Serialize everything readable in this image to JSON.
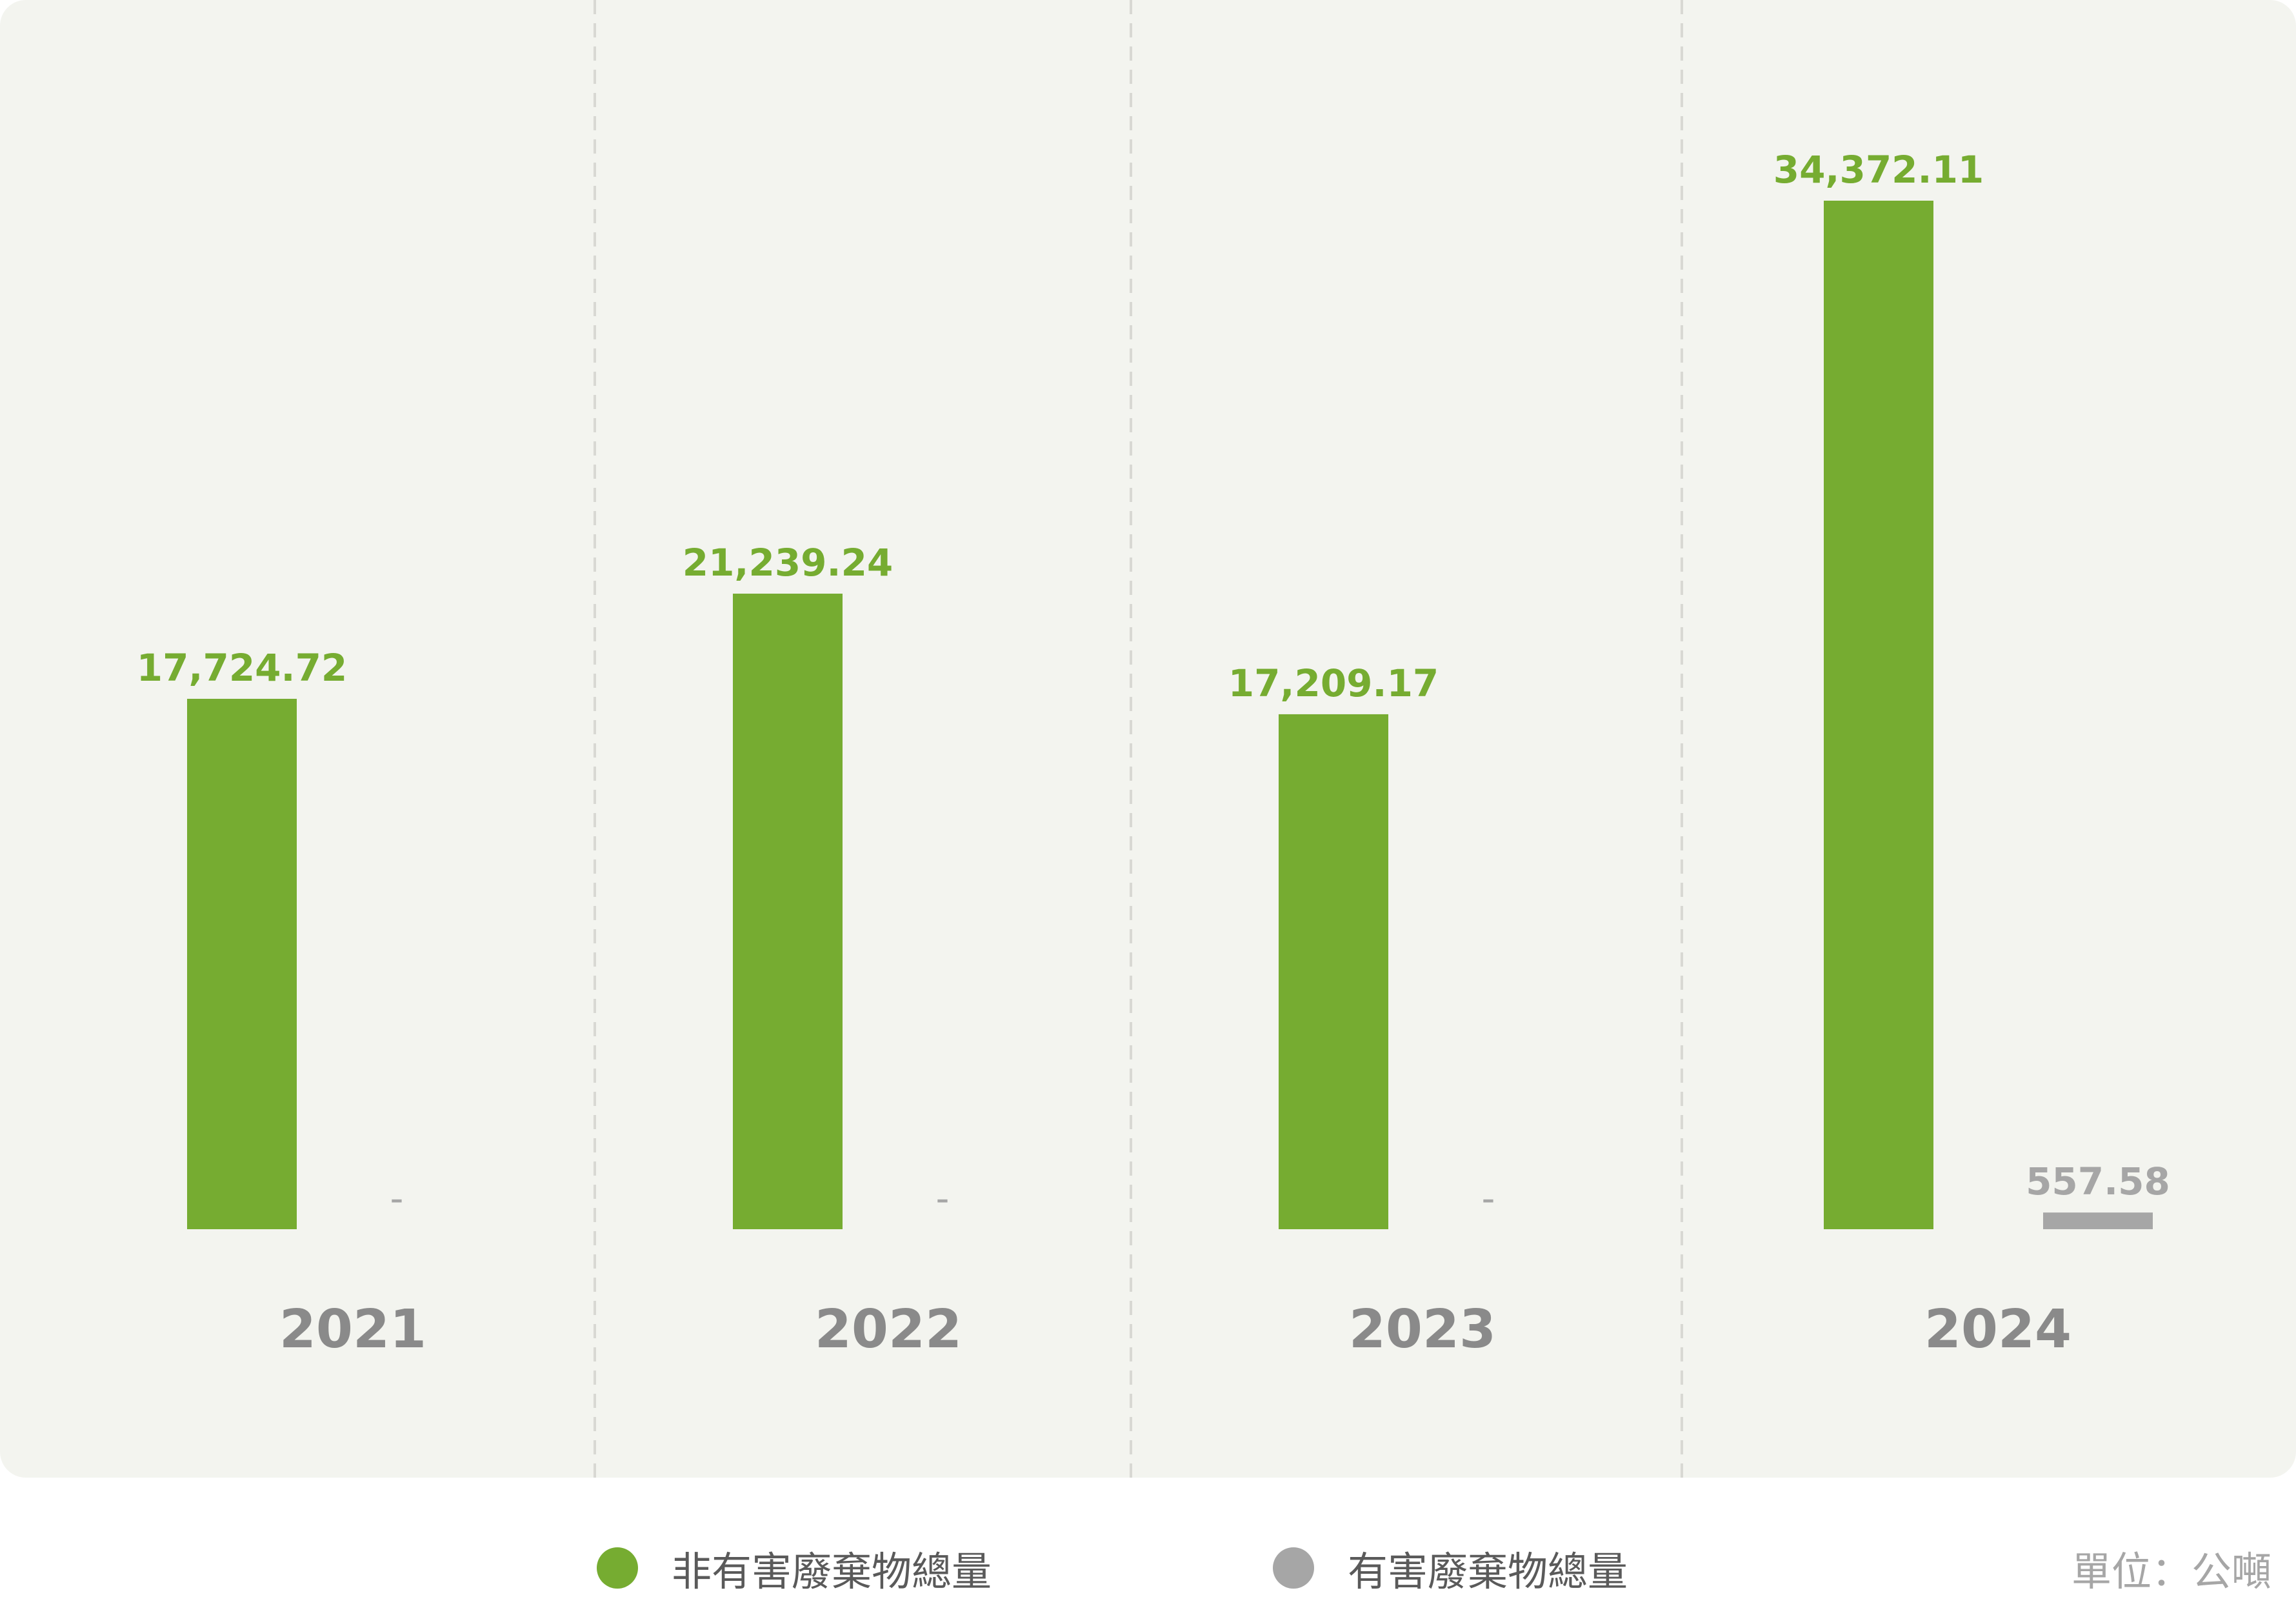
{
  "chart_data": {
    "type": "bar",
    "categories": [
      "2021",
      "2022",
      "2023",
      "2024"
    ],
    "series": [
      {
        "name": "非有害廢棄物總量",
        "color": "#76ac31",
        "values": [
          17724.72,
          21239.24,
          17209.17,
          34372.11
        ],
        "labels": [
          "17,724.72",
          "21,239.24",
          "17,209.17",
          "34,372.11"
        ]
      },
      {
        "name": "有害廢棄物總量",
        "color": "#a6a6a6",
        "values": [
          null,
          null,
          null,
          557.58
        ],
        "labels": [
          "-",
          "-",
          "-",
          "557.58"
        ]
      }
    ],
    "unit": "單位：公噸",
    "ylim": [
      0,
      36000
    ],
    "grid": false,
    "legend_position": "bottom"
  },
  "colors": {
    "panel_background": "#f3f4ef",
    "divider": "#d8d8d3",
    "year_label": "#8a8a8a"
  }
}
